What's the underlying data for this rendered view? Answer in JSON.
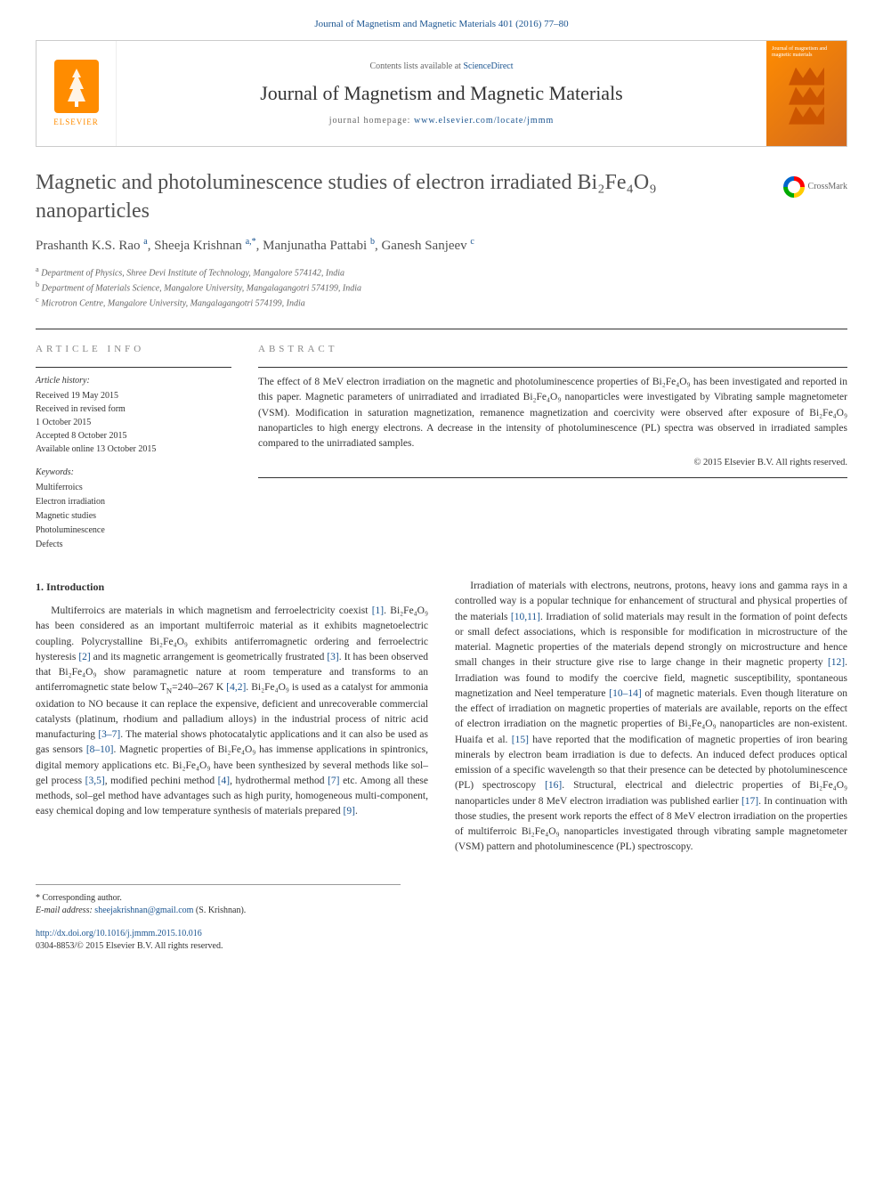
{
  "top_link": {
    "prefix": "",
    "journal_ref": "Journal of Magnetism and Magnetic Materials 401 (2016) 77–80"
  },
  "header": {
    "contents_prefix": "Contents lists available at ",
    "contents_link": "ScienceDirect",
    "journal_name": "Journal of Magnetism and Magnetic Materials",
    "homepage_prefix": "journal homepage: ",
    "homepage_link": "www.elsevier.com/locate/jmmm",
    "publisher": "ELSEVIER",
    "cover_text": "Journal of magnetism and magnetic materials"
  },
  "title": "Magnetic and photoluminescence studies of electron irradiated Bi₂Fe₄O₉ nanoparticles",
  "crossmark_label": "CrossMark",
  "authors_html": "Prashanth K.S. Rao|a|, Sheeja Krishnan|a,*|, Manjunatha Pattabi|b|, Ganesh Sanjeev|c|",
  "authors": [
    {
      "name": "Prashanth K.S. Rao",
      "sup": "a"
    },
    {
      "name": "Sheeja Krishnan",
      "sup": "a,*"
    },
    {
      "name": "Manjunatha Pattabi",
      "sup": "b"
    },
    {
      "name": "Ganesh Sanjeev",
      "sup": "c"
    }
  ],
  "affiliations": [
    {
      "sup": "a",
      "text": "Department of Physics, Shree Devi Institute of Technology, Mangalore 574142, India"
    },
    {
      "sup": "b",
      "text": "Department of Materials Science, Mangalore University, Mangalagangotri 574199, India"
    },
    {
      "sup": "c",
      "text": "Microtron Centre, Mangalore University, Mangalagangotri 574199, India"
    }
  ],
  "article_info": {
    "heading": "ARTICLE INFO",
    "history_label": "Article history:",
    "history": "Received 19 May 2015\nReceived in revised form\n1 October 2015\nAccepted 8 October 2015\nAvailable online 13 October 2015",
    "keywords_label": "Keywords:",
    "keywords": "Multiferroics\nElectron irradiation\nMagnetic studies\nPhotoluminescence\nDefects"
  },
  "abstract": {
    "heading": "ABSTRACT",
    "text": "The effect of 8 MeV electron irradiation on the magnetic and photoluminescence properties of Bi₂Fe₄O₉ has been investigated and reported in this paper. Magnetic parameters of unirradiated and irradiated Bi₂Fe₄O₉ nanoparticles were investigated by Vibrating sample magnetometer (VSM). Modification in saturation magnetization, remanence magnetization and coercivity were observed after exposure of Bi₂Fe₄O₉ nanoparticles to high energy electrons. A decrease in the intensity of photoluminescence (PL) spectra was observed in irradiated samples compared to the unirradiated samples.",
    "copyright": "© 2015 Elsevier B.V. All rights reserved."
  },
  "section1": {
    "heading": "1. Introduction",
    "p1_pre": "Multiferroics are materials in which magnetism and ferroelectricity coexist ",
    "ref1": "[1]",
    "p1_mid1": ". Bi₂Fe₄O₉ has been considered as an important multiferroic material as it exhibits magnetoelectric coupling. Polycrystalline Bi₂Fe₄O₉ exhibits antiferromagnetic ordering and ferroelectric hysteresis ",
    "ref2": "[2]",
    "p1_mid2": " and its magnetic arrangement is geometrically frustrated ",
    "ref3": "[3]",
    "p1_mid3": ". It has been observed that Bi₂Fe₄O₉ show paramagnetic nature at room temperature and transforms to an antiferromagnetic state below T",
    "tn_sub": "N",
    "p1_mid4": "=240–267 K ",
    "ref4": "[4,2]",
    "p1_mid5": ". Bi₂Fe₄O₉ is used as a catalyst for ammonia oxidation to NO because it can replace the expensive, deficient and unrecoverable commercial catalysts (platinum, rhodium and palladium alloys) in the industrial process of nitric acid manufacturing ",
    "ref5": "[3–7]",
    "p1_mid6": ". The material shows photocatalytic applications and it can also be used as gas sensors ",
    "ref6": "[8–10]",
    "p1_mid7": ". Magnetic properties of Bi₂Fe₄O₉ has immense applications in spintronics, digital memory applications etc. Bi₂Fe₄O₉ have been synthesized by several methods like sol–gel process ",
    "ref7": "[3,5]",
    "p1_mid8": ", modified pechini method ",
    "ref8": "[4]",
    "p1_mid9": ", hydrothermal method ",
    "ref9": "[7]",
    "p1_mid10": " etc. Among all these methods, sol–gel method have advantages such as high purity, homogeneous multi-component, easy chemical doping and low temperature synthesis of materials prepared ",
    "ref10": "[9]",
    "p1_end": ".",
    "p2_pre": "Irradiation of materials with electrons, neutrons, protons, heavy ions and gamma rays in a controlled way is a popular technique for enhancement of structural and physical properties of the materials ",
    "ref11": "[10,11]",
    "p2_mid1": ". Irradiation of solid materials may result in the formation of point defects or small defect associations, which is responsible for modification in microstructure of the material. Magnetic properties of the materials depend strongly on microstructure and hence small changes in their structure give rise to large change in their magnetic property ",
    "ref12": "[12]",
    "p2_mid2": ". Irradiation was found to modify the coercive field, magnetic susceptibility, spontaneous magnetization and Neel temperature ",
    "ref13": "[10–14]",
    "p2_mid3": " of magnetic materials. Even though literature on the effect of irradiation on magnetic properties of materials are available, reports on the effect of electron irradiation on the magnetic properties of Bi₂Fe₄O₉ nanoparticles are non-existent. Huaifa et al. ",
    "ref14": "[15]",
    "p2_mid4": " have reported that the modification of magnetic properties of iron bearing minerals by electron beam irradiation is due to defects. An induced defect produces optical emission of a specific wavelength so that their presence can be detected by photoluminescence (PL) spectroscopy ",
    "ref15": "[16]",
    "p2_mid5": ". Structural, electrical and dielectric properties of Bi₂Fe₄O₉ nanoparticles under 8 MeV electron irradiation was published earlier ",
    "ref16": "[17]",
    "p2_mid6": ". In continuation with those studies, the present work reports the effect of 8 MeV electron irradiation on the properties of multiferroic Bi₂Fe₄O₉ nanoparticles investigated through vibrating sample magnetometer (VSM) pattern and photoluminescence (PL) spectroscopy."
  },
  "footnote": {
    "corr_label": "* Corresponding author.",
    "email_label": "E-mail address: ",
    "email": "sheejakrishnan@gmail.com",
    "email_suffix": " (S. Krishnan)."
  },
  "doi": {
    "link": "http://dx.doi.org/10.1016/j.jmmm.2015.10.016",
    "issn_copyright": "0304-8853/© 2015 Elsevier B.V. All rights reserved."
  },
  "colors": {
    "link": "#1a5490",
    "elsevier_orange": "#ff8c00",
    "text": "#333333",
    "title": "#505050",
    "heading_gray": "#888888"
  }
}
